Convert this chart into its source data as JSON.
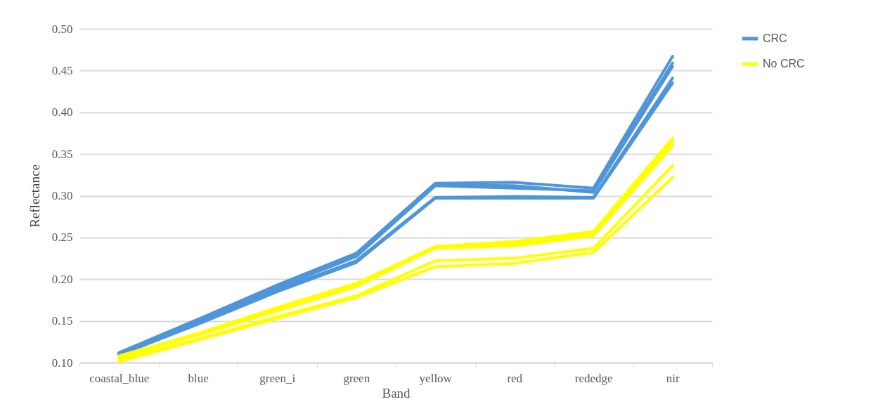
{
  "chart_data": {
    "type": "line",
    "xlabel": "Band",
    "ylabel": "Reflectance",
    "categories": [
      "coastal_blue",
      "blue",
      "green_i",
      "green",
      "yellow",
      "red",
      "rededge",
      "nir"
    ],
    "series": [
      {
        "name": "CRC",
        "color": "#4f95d9",
        "values": [
          0.112,
          0.152,
          0.193,
          0.231,
          0.315,
          0.316,
          0.309,
          0.467
        ]
      },
      {
        "color": "#4f95d9",
        "values": [
          0.111,
          0.149,
          0.19,
          0.227,
          0.312,
          0.309,
          0.306,
          0.459
        ]
      },
      {
        "color": "#4f95d9",
        "values": [
          0.111,
          0.15,
          0.189,
          0.229,
          0.313,
          0.312,
          0.304,
          0.455
        ]
      },
      {
        "color": "#4f95d9",
        "values": [
          0.11,
          0.148,
          0.187,
          0.222,
          0.298,
          0.299,
          0.298,
          0.441
        ]
      },
      {
        "color": "#4f95d9",
        "values": [
          0.109,
          0.146,
          0.185,
          0.22,
          0.297,
          0.297,
          0.297,
          0.435
        ]
      },
      {
        "name": "No CRC",
        "color": "#ffff00",
        "values": [
          0.108,
          0.135,
          0.166,
          0.195,
          0.239,
          0.245,
          0.257,
          0.369
        ]
      },
      {
        "color": "#ffff00",
        "values": [
          0.107,
          0.134,
          0.164,
          0.193,
          0.238,
          0.242,
          0.255,
          0.365
        ]
      },
      {
        "color": "#ffff00",
        "values": [
          0.106,
          0.133,
          0.162,
          0.191,
          0.237,
          0.24,
          0.252,
          0.36
        ]
      },
      {
        "color": "#ffff00",
        "values": [
          0.103,
          0.128,
          0.155,
          0.18,
          0.222,
          0.225,
          0.237,
          0.336
        ]
      },
      {
        "color": "#ffff00",
        "values": [
          0.101,
          0.127,
          0.153,
          0.178,
          0.215,
          0.219,
          0.232,
          0.322
        ]
      }
    ],
    "ylim": [
      0.1,
      0.5
    ],
    "yticks": [
      {
        "value": 0.1,
        "label": "0.10"
      },
      {
        "value": 0.15,
        "label": "0.15"
      },
      {
        "value": 0.2,
        "label": "0.20"
      },
      {
        "value": 0.25,
        "label": "0.25"
      },
      {
        "value": 0.3,
        "label": "0.30"
      },
      {
        "value": 0.35,
        "label": "0.35"
      },
      {
        "value": 0.4,
        "label": "0.40"
      },
      {
        "value": 0.45,
        "label": "0.45"
      },
      {
        "value": 0.5,
        "label": "0.50"
      }
    ],
    "grid": "y",
    "legend": "right",
    "marker": "none",
    "line_style": "solid"
  }
}
